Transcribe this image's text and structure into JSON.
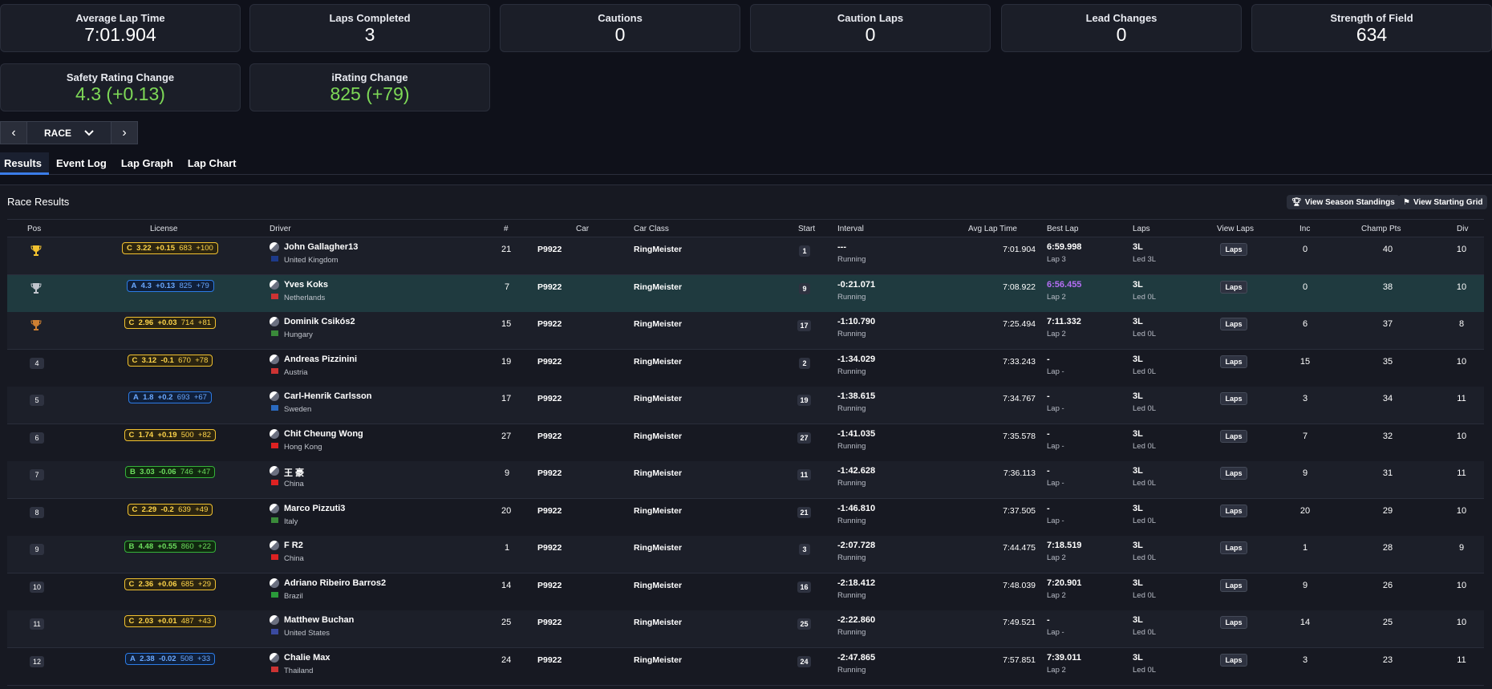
{
  "stats": [
    {
      "label": "Average Lap Time",
      "value": "7:01.904",
      "color": "#ffffff"
    },
    {
      "label": "Laps Completed",
      "value": "3",
      "color": "#ffffff"
    },
    {
      "label": "Cautions",
      "value": "0",
      "color": "#ffffff"
    },
    {
      "label": "Caution Laps",
      "value": "0",
      "color": "#ffffff"
    },
    {
      "label": "Lead Changes",
      "value": "0",
      "color": "#ffffff"
    },
    {
      "label": "Strength of Field",
      "value": "634",
      "color": "#ffffff"
    },
    {
      "label": "Safety Rating Change",
      "value": "4.3 (+0.13)",
      "color": "#7ed957"
    },
    {
      "label": "iRating Change",
      "value": "825 (+79)",
      "color": "#7ed957"
    }
  ],
  "session_nav": {
    "selected": "RACE"
  },
  "tabs": [
    "Results",
    "Event Log",
    "Lap Graph",
    "Lap Chart"
  ],
  "panel": {
    "title": "Race Results",
    "btn_standings": "View Season Standings",
    "btn_grid": "View Starting Grid"
  },
  "columns": {
    "pos": "Pos",
    "license": "License",
    "driver": "Driver",
    "num": "#",
    "car": "Car",
    "car_class": "Car Class",
    "start": "Start",
    "interval": "Interval",
    "avg": "Avg Lap Time",
    "best": "Best Lap",
    "laps": "Laps",
    "view_laps": "View Laps",
    "inc": "Inc",
    "pts": "Champ Pts",
    "div": "Div"
  },
  "laps_button": "Laps",
  "rows": [
    {
      "pos": "1",
      "trophy": "#f2c230",
      "lic_class": "C",
      "sr": "3.22",
      "sr_chg": "+0.15",
      "ir": "683",
      "ir_chg": "+100",
      "name": "John Gallagher13",
      "country": "United Kingdom",
      "flag": "#1d3a8a",
      "num": "21",
      "car": "P9922",
      "car_class": "RingMeister",
      "start": "1",
      "interval": "---",
      "status": "Running",
      "avg": "7:01.904",
      "best": "6:59.998",
      "best_sub": "Lap 3",
      "laps": "3L",
      "laps_sub": "Led 3L",
      "inc": "0",
      "pts": "40",
      "div": "10"
    },
    {
      "pos": "2",
      "trophy": "#c0c4cc",
      "lic_class": "A",
      "sr": "4.3",
      "sr_chg": "+0.13",
      "ir": "825",
      "ir_chg": "+79",
      "name": "Yves Koks",
      "country": "Netherlands",
      "flag": "#c33",
      "num": "7",
      "car": "P9922",
      "car_class": "RingMeister",
      "start": "9",
      "interval": "-0:21.071",
      "status": "Running",
      "avg": "7:08.922",
      "best": "6:56.455",
      "best_sub": "Lap 2",
      "laps": "3L",
      "laps_sub": "Led 0L",
      "inc": "0",
      "pts": "38",
      "div": "10",
      "highlight": true,
      "best_purple": true
    },
    {
      "pos": "3",
      "trophy": "#cd7f32",
      "lic_class": "C",
      "sr": "2.96",
      "sr_chg": "+0.03",
      "ir": "714",
      "ir_chg": "+81",
      "name": "Dominik Csikós2",
      "country": "Hungary",
      "flag": "#3a8a3a",
      "num": "15",
      "car": "P9922",
      "car_class": "RingMeister",
      "start": "17",
      "interval": "-1:10.790",
      "status": "Running",
      "avg": "7:25.494",
      "best": "7:11.332",
      "best_sub": "Lap 2",
      "laps": "3L",
      "laps_sub": "Led 0L",
      "inc": "6",
      "pts": "37",
      "div": "8"
    },
    {
      "pos": "4",
      "lic_class": "C",
      "sr": "3.12",
      "sr_chg": "-0.1",
      "ir": "670",
      "ir_chg": "+78",
      "name": "Andreas Pizzinini",
      "country": "Austria",
      "flag": "#c33",
      "num": "19",
      "car": "P9922",
      "car_class": "RingMeister",
      "start": "2",
      "interval": "-1:34.029",
      "status": "Running",
      "avg": "7:33.243",
      "best": "-",
      "best_sub": "Lap -",
      "laps": "3L",
      "laps_sub": "Led 0L",
      "inc": "15",
      "pts": "35",
      "div": "10"
    },
    {
      "pos": "5",
      "lic_class": "A",
      "sr": "1.8",
      "sr_chg": "+0.2",
      "ir": "693",
      "ir_chg": "+67",
      "name": "Carl-Henrik Carlsson",
      "country": "Sweden",
      "flag": "#2a6ac0",
      "num": "17",
      "car": "P9922",
      "car_class": "RingMeister",
      "start": "19",
      "interval": "-1:38.615",
      "status": "Running",
      "avg": "7:34.767",
      "best": "-",
      "best_sub": "Lap -",
      "laps": "3L",
      "laps_sub": "Led 0L",
      "inc": "3",
      "pts": "34",
      "div": "11"
    },
    {
      "pos": "6",
      "lic_class": "C",
      "sr": "1.74",
      "sr_chg": "+0.19",
      "ir": "500",
      "ir_chg": "+82",
      "name": "Chit Cheung Wong",
      "country": "Hong Kong",
      "flag": "#d22",
      "num": "27",
      "car": "P9922",
      "car_class": "RingMeister",
      "start": "27",
      "interval": "-1:41.035",
      "status": "Running",
      "avg": "7:35.578",
      "best": "-",
      "best_sub": "Lap -",
      "laps": "3L",
      "laps_sub": "Led 0L",
      "inc": "7",
      "pts": "32",
      "div": "10"
    },
    {
      "pos": "7",
      "lic_class": "B",
      "sr": "3.03",
      "sr_chg": "-0.06",
      "ir": "746",
      "ir_chg": "+47",
      "name": "王 豪",
      "country": "China",
      "flag": "#d22",
      "num": "9",
      "car": "P9922",
      "car_class": "RingMeister",
      "start": "11",
      "interval": "-1:42.628",
      "status": "Running",
      "avg": "7:36.113",
      "best": "-",
      "best_sub": "Lap -",
      "laps": "3L",
      "laps_sub": "Led 0L",
      "inc": "9",
      "pts": "31",
      "div": "11"
    },
    {
      "pos": "8",
      "lic_class": "C",
      "sr": "2.29",
      "sr_chg": "-0.2",
      "ir": "639",
      "ir_chg": "+49",
      "name": "Marco Pizzuti3",
      "country": "Italy",
      "flag": "#3a8a3a",
      "num": "20",
      "car": "P9922",
      "car_class": "RingMeister",
      "start": "21",
      "interval": "-1:46.810",
      "status": "Running",
      "avg": "7:37.505",
      "best": "-",
      "best_sub": "Lap -",
      "laps": "3L",
      "laps_sub": "Led 0L",
      "inc": "20",
      "pts": "29",
      "div": "10"
    },
    {
      "pos": "9",
      "lic_class": "B",
      "sr": "4.48",
      "sr_chg": "+0.55",
      "ir": "860",
      "ir_chg": "+22",
      "name": "F R2",
      "country": "China",
      "flag": "#d22",
      "num": "1",
      "car": "P9922",
      "car_class": "RingMeister",
      "start": "3",
      "interval": "-2:07.728",
      "status": "Running",
      "avg": "7:44.475",
      "best": "7:18.519",
      "best_sub": "Lap 2",
      "laps": "3L",
      "laps_sub": "Led 0L",
      "inc": "1",
      "pts": "28",
      "div": "9"
    },
    {
      "pos": "10",
      "lic_class": "C",
      "sr": "2.36",
      "sr_chg": "+0.06",
      "ir": "685",
      "ir_chg": "+29",
      "name": "Adriano Ribeiro Barros2",
      "country": "Brazil",
      "flag": "#2a9a3a",
      "num": "14",
      "car": "P9922",
      "car_class": "RingMeister",
      "start": "16",
      "interval": "-2:18.412",
      "status": "Running",
      "avg": "7:48.039",
      "best": "7:20.901",
      "best_sub": "Lap 2",
      "laps": "3L",
      "laps_sub": "Led 0L",
      "inc": "9",
      "pts": "26",
      "div": "10"
    },
    {
      "pos": "11",
      "lic_class": "C",
      "sr": "2.03",
      "sr_chg": "+0.01",
      "ir": "487",
      "ir_chg": "+43",
      "name": "Matthew Buchan",
      "country": "United States",
      "flag": "#3a4aa0",
      "num": "25",
      "car": "P9922",
      "car_class": "RingMeister",
      "start": "25",
      "interval": "-2:22.860",
      "status": "Running",
      "avg": "7:49.521",
      "best": "-",
      "best_sub": "Lap -",
      "laps": "3L",
      "laps_sub": "Led 0L",
      "inc": "14",
      "pts": "25",
      "div": "10"
    },
    {
      "pos": "12",
      "lic_class": "A",
      "sr": "2.38",
      "sr_chg": "-0.02",
      "ir": "508",
      "ir_chg": "+33",
      "name": "Chalie Max",
      "country": "Thailand",
      "flag": "#c33",
      "num": "24",
      "car": "P9922",
      "car_class": "RingMeister",
      "start": "24",
      "interval": "-2:47.865",
      "status": "Running",
      "avg": "7:57.851",
      "best": "7:39.011",
      "best_sub": "Lap 2",
      "laps": "3L",
      "laps_sub": "Led 0L",
      "inc": "3",
      "pts": "23",
      "div": "11"
    }
  ]
}
